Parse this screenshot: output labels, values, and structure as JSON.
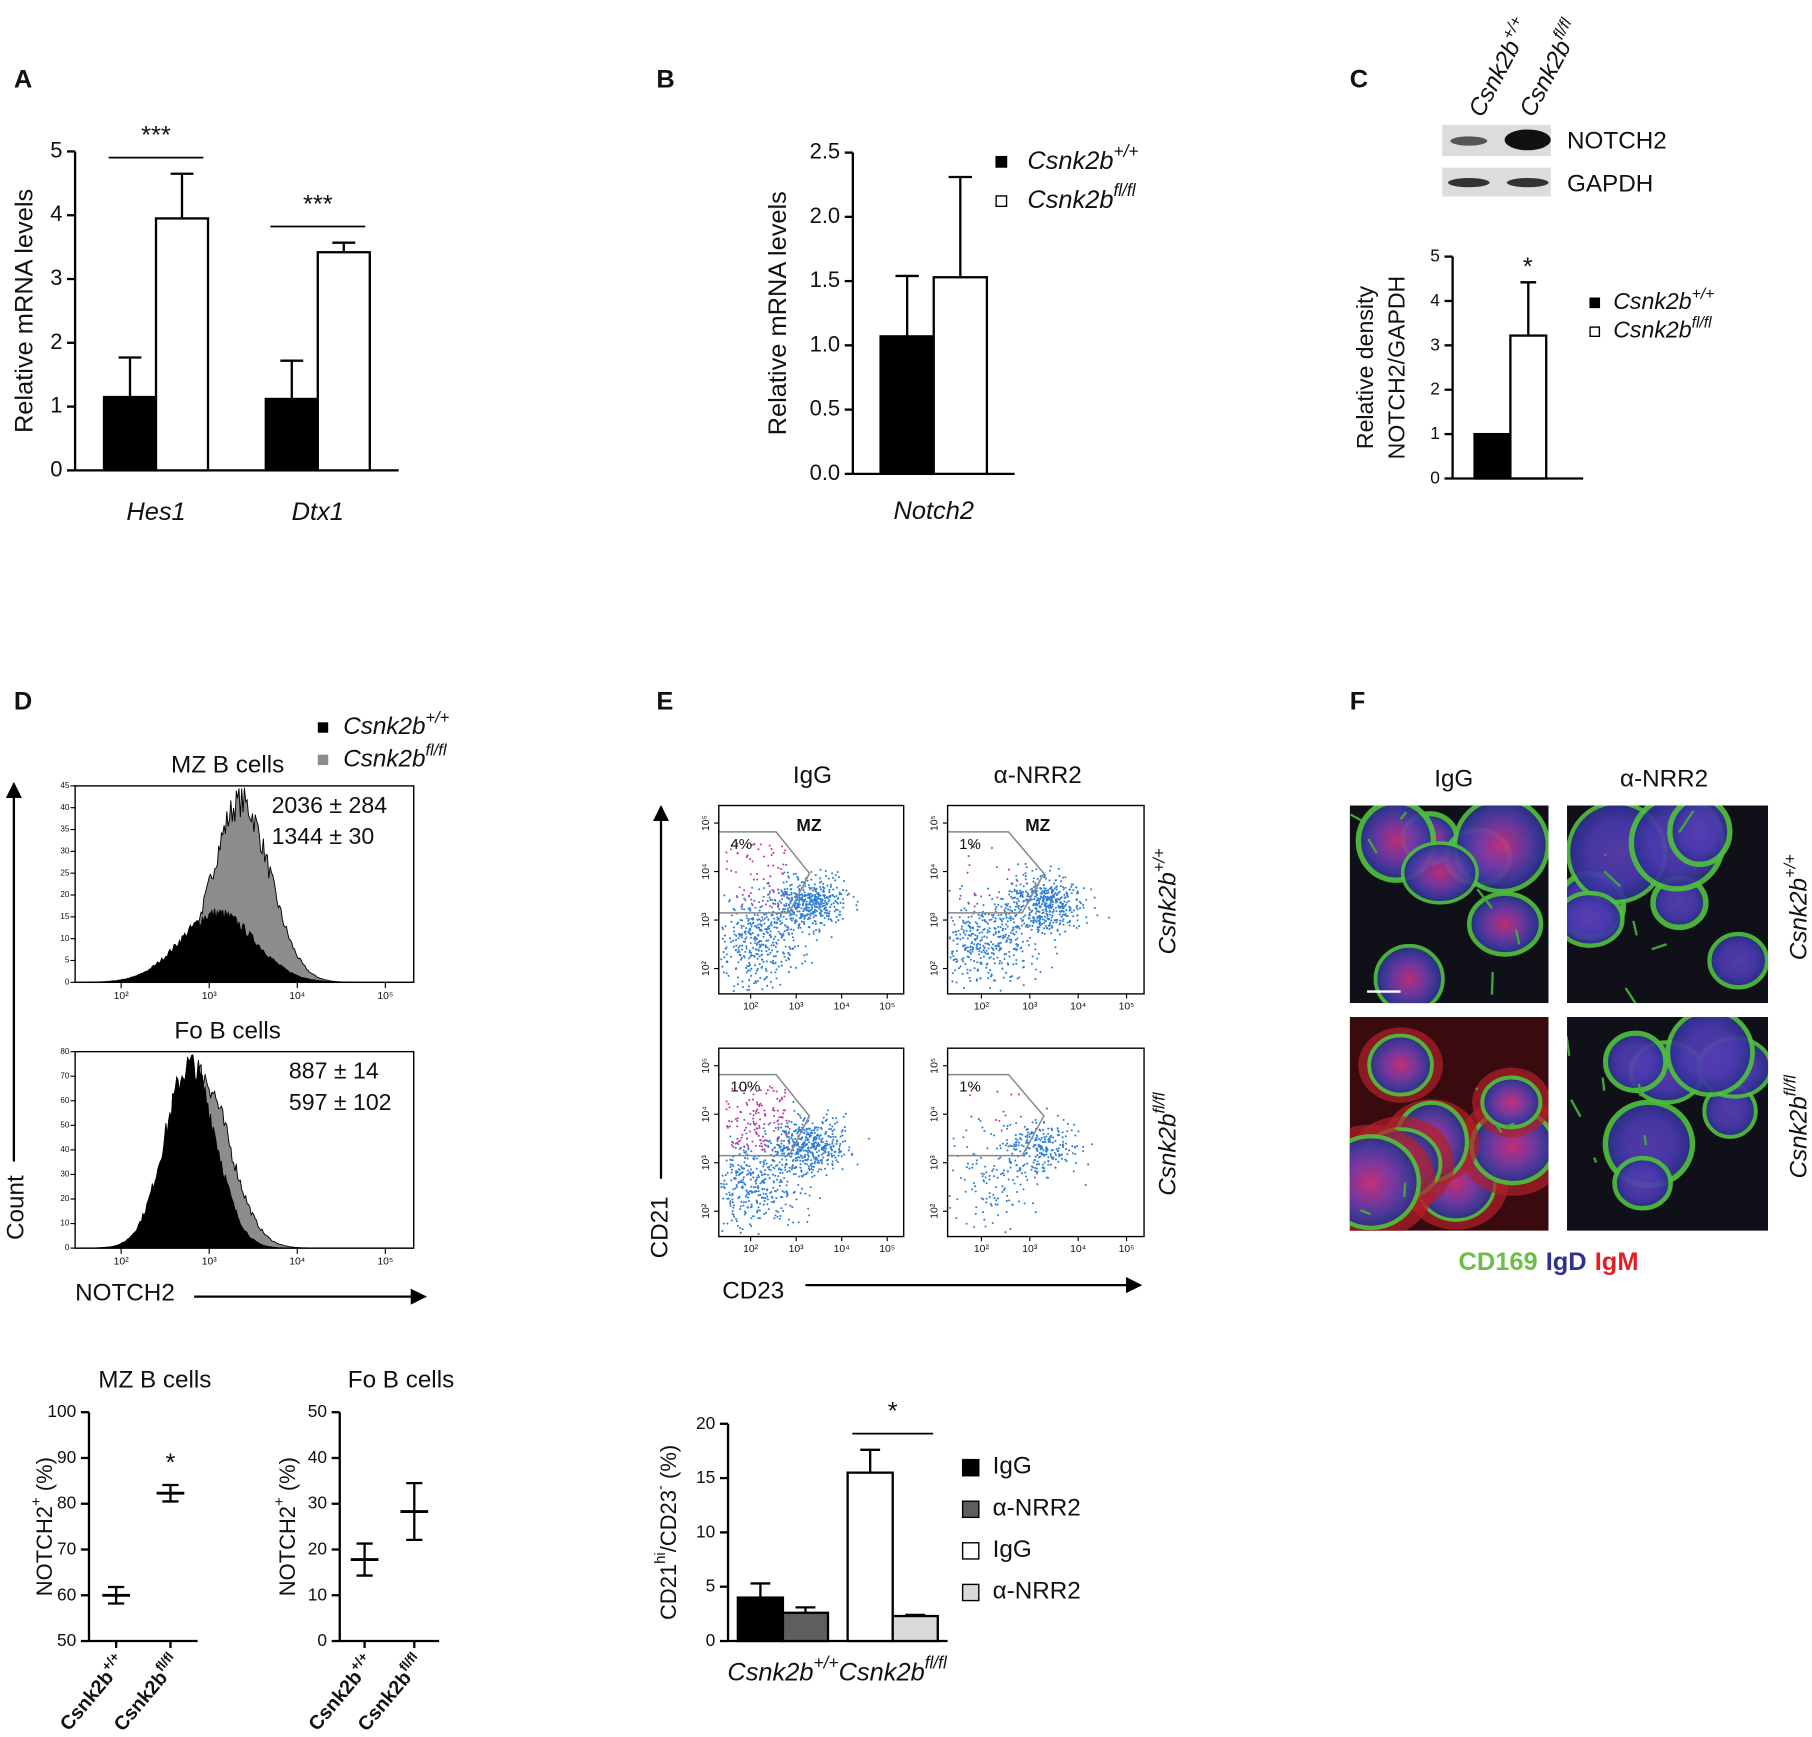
{
  "panel_labels": [
    "A",
    "B",
    "C",
    "D",
    "E",
    "F"
  ],
  "blot": {
    "lanes": [
      {
        "name": "Csnk2b",
        "name_sup": "+/+"
      },
      {
        "name": "Csnk2b",
        "name_sup": "fl/fl"
      }
    ],
    "bands": [
      "NOTCH2",
      "GAPDH"
    ]
  },
  "panel_d": {
    "legend": [
      {
        "name": "Csnk2b",
        "name_sup": "+/+",
        "color": "#000000"
      },
      {
        "name": "Csnk2b",
        "name_sup": "fl/fl",
        "color": "#8c8c8c"
      }
    ],
    "xlabel": "NOTCH2",
    "ylabel": "Count"
  },
  "panel_e": {
    "columns": [
      "IgG",
      "α-NRR2"
    ],
    "rows": [
      {
        "name": "Csnk2b",
        "name_sup": "+/+"
      },
      {
        "name": "Csnk2b",
        "name_sup": "fl/fl"
      }
    ],
    "xlabel": "CD23",
    "ylabel": "CD21"
  },
  "panel_f": {
    "columns": [
      "IgG",
      "α-NRR2"
    ],
    "rows": [
      {
        "name": "Csnk2b",
        "name_sup": "+/+"
      },
      {
        "name": "Csnk2b",
        "name_sup": "fl/fl"
      }
    ],
    "stains": [
      {
        "name": "CD169",
        "color": "#6cbf45"
      },
      {
        "name": "IgD",
        "color": "#2e3192"
      },
      {
        "name": "IgM",
        "color": "#e31e24"
      }
    ]
  },
  "chart_data": [
    {
      "type": "bar",
      "categories": [
        "Hes1",
        "Dtx1"
      ],
      "series": [
        {
          "color": "#000000",
          "values": [
            1.15,
            1.12
          ],
          "errors": [
            0.62,
            0.6
          ]
        },
        {
          "color": "#ffffff",
          "values": [
            3.95,
            3.42
          ],
          "errors": [
            0.7,
            0.15
          ]
        }
      ],
      "ylabel": "Relative mRNA levels",
      "ylim": [
        0,
        5
      ],
      "yticks": [
        0,
        1,
        2,
        3,
        4,
        5
      ],
      "annotations": [
        "***",
        "***"
      ],
      "bracket": true
    },
    {
      "type": "bar",
      "categories": [
        "Notch2"
      ],
      "series": [
        {
          "name": "Csnk2b",
          "name_sup": "+/+",
          "color": "#000000",
          "values": [
            1.07
          ],
          "errors": [
            0.47
          ]
        },
        {
          "name": "Csnk2b",
          "name_sup": "fl/fl",
          "color": "#ffffff",
          "values": [
            1.53
          ],
          "errors": [
            0.78
          ]
        }
      ],
      "ylabel": "Relative mRNA levels",
      "ylim": [
        0,
        2.5
      ],
      "yticks": [
        {
          "value": 0,
          "label": "0.0"
        },
        {
          "value": 0.5,
          "label": "0.5"
        },
        {
          "value": 1,
          "label": "1.0"
        },
        {
          "value": 1.5,
          "label": "1.5"
        },
        {
          "value": 2,
          "label": "2.0"
        },
        {
          "value": 2.5,
          "label": "2.5"
        }
      ],
      "legend": "right"
    },
    {
      "type": "bar",
      "categories": [
        null
      ],
      "series": [
        {
          "name": "Csnk2b",
          "name_sup": "+/+",
          "color": "#000000",
          "values": [
            1
          ]
        },
        {
          "name": "Csnk2b",
          "name_sup": "fl/fl",
          "color": "#ffffff",
          "values": [
            3.22
          ],
          "errors": [
            1.2
          ]
        }
      ],
      "ylabel": [
        "Relative density",
        "NOTCH2/GAPDH"
      ],
      "ylim": [
        0,
        5
      ],
      "yticks": [
        0,
        1,
        2,
        3,
        4,
        5
      ],
      "annotations": [
        "*"
      ],
      "legend": "right"
    },
    {
      "type": "flow-histogram",
      "title": "MZ B cells",
      "xscale": "log",
      "xlim": [
        30,
        210000
      ],
      "xticks": [
        {
          "value": 100,
          "label": "10²"
        },
        {
          "value": 1000,
          "label": "10³"
        },
        {
          "value": 10000,
          "label": "10⁴"
        },
        {
          "value": 100000,
          "label": "10⁵"
        }
      ],
      "ylim": [
        0,
        45
      ],
      "yticks": [
        0,
        5,
        10,
        15,
        20,
        25,
        30,
        35,
        40,
        45
      ],
      "annotations": [
        "2036 ± 284",
        "1344 ± 30"
      ]
    },
    {
      "type": "flow-histogram",
      "title": "Fo B cells",
      "xscale": "log",
      "xlim": [
        30,
        210000
      ],
      "xticks": [
        {
          "value": 100,
          "label": "10²"
        },
        {
          "value": 1000,
          "label": "10³"
        },
        {
          "value": 10000,
          "label": "10⁴"
        },
        {
          "value": 100000,
          "label": "10⁵"
        }
      ],
      "ylim": [
        0,
        80
      ],
      "yticks": [
        0,
        10,
        20,
        30,
        40,
        50,
        60,
        70,
        80
      ],
      "annotations": [
        "887 ± 14",
        "597 ± 102"
      ]
    },
    {
      "type": "errorbar",
      "title": "MZ B cells",
      "categories": [
        "Csnk2b",
        "Csnk2b"
      ],
      "category_sups": [
        "+/+",
        "fl/fl"
      ],
      "values": [
        60,
        82.3
      ],
      "errors": [
        1.8,
        1.8
      ],
      "ylabel": [
        {
          "text": "NOTCH2"
        },
        {
          "sup": "+"
        },
        {
          "text": " (%)"
        }
      ],
      "ylim": [
        50,
        100
      ],
      "yticks": [
        50,
        60,
        70,
        80,
        90,
        100
      ],
      "annotations": [
        "*"
      ]
    },
    {
      "type": "errorbar",
      "title": "Fo B cells",
      "categories": [
        "Csnk2b",
        "Csnk2b"
      ],
      "category_sups": [
        "+/+",
        "fl/fl"
      ],
      "values": [
        17.8,
        28.3
      ],
      "errors": [
        3.5,
        6.2
      ],
      "ylabel": [
        {
          "text": "NOTCH2"
        },
        {
          "sup": "+"
        },
        {
          "text": " (%)"
        }
      ],
      "ylim": [
        0,
        50
      ],
      "yticks": [
        0,
        10,
        20,
        30,
        40,
        50
      ]
    },
    {
      "type": "bar",
      "categories": [
        "Csnk2b",
        "Csnk2b"
      ],
      "category_sups": [
        "+/+",
        "fl/fl"
      ],
      "series": [
        {
          "name": "IgG",
          "color": "#000000",
          "values": [
            4.0,
            null
          ],
          "errors": [
            1.3,
            null
          ]
        },
        {
          "name": "α-NRR2",
          "color": "#5e5e5e",
          "values": [
            2.6,
            null
          ],
          "errors": [
            0.5,
            null
          ]
        },
        {
          "name": "IgG",
          "color": "#ffffff",
          "values": [
            null,
            15.5
          ],
          "errors": [
            null,
            2.1
          ]
        },
        {
          "name": "α-NRR2",
          "color": "#d9d9d9",
          "values": [
            null,
            2.3
          ],
          "errors": [
            null,
            0.1
          ]
        }
      ],
      "ylabel": [
        {
          "text": "CD21"
        },
        {
          "sup": "hi"
        },
        {
          "text": "/CD23"
        },
        {
          "sup": "-"
        },
        {
          "text": " (%)"
        }
      ],
      "ylim": [
        0,
        20
      ],
      "yticks": [
        0,
        5,
        10,
        15,
        20
      ],
      "annotations": [
        "*"
      ],
      "bracket": true,
      "legend": "right"
    },
    {
      "type": "flow-dot",
      "gate_label": "MZ",
      "gate_percent": "4%",
      "xscale": "log",
      "yscale": "log",
      "xlim": [
        20,
        230000
      ],
      "ylim": [
        30,
        230000
      ],
      "xticks": [
        {
          "value": 100,
          "label": "10²"
        },
        {
          "value": 1000,
          "label": "10³"
        },
        {
          "value": 10000,
          "label": "10⁴"
        },
        {
          "value": 100000,
          "label": "10⁵"
        }
      ],
      "yticks": [
        {
          "value": 100,
          "label": "10²"
        },
        {
          "value": 1000,
          "label": "10³"
        },
        {
          "value": 10000,
          "label": "10⁴"
        },
        {
          "value": 100000,
          "label": "10⁵"
        }
      ]
    },
    {
      "type": "flow-dot",
      "gate_label": "MZ",
      "gate_percent": "1%",
      "xscale": "log",
      "yscale": "log",
      "xlim": [
        20,
        230000
      ],
      "ylim": [
        30,
        230000
      ],
      "xticks": [
        {
          "value": 100,
          "label": "10²"
        },
        {
          "value": 1000,
          "label": "10³"
        },
        {
          "value": 10000,
          "label": "10⁴"
        },
        {
          "value": 100000,
          "label": "10⁵"
        }
      ],
      "yticks": [
        {
          "value": 100,
          "label": "10²"
        },
        {
          "value": 1000,
          "label": "10³"
        },
        {
          "value": 10000,
          "label": "10⁴"
        },
        {
          "value": 100000,
          "label": "10⁵"
        }
      ]
    },
    {
      "type": "flow-dot",
      "gate_percent": "10%",
      "xscale": "log",
      "yscale": "log",
      "xlim": [
        20,
        230000
      ],
      "ylim": [
        30,
        230000
      ],
      "xticks": [
        {
          "value": 100,
          "label": "10²"
        },
        {
          "value": 1000,
          "label": "10³"
        },
        {
          "value": 10000,
          "label": "10⁴"
        },
        {
          "value": 100000,
          "label": "10⁵"
        }
      ],
      "yticks": [
        {
          "value": 100,
          "label": "10²"
        },
        {
          "value": 1000,
          "label": "10³"
        },
        {
          "value": 10000,
          "label": "10⁴"
        },
        {
          "value": 100000,
          "label": "10⁵"
        }
      ]
    },
    {
      "type": "flow-dot",
      "gate_percent": "1%",
      "xscale": "log",
      "yscale": "log",
      "xlim": [
        20,
        230000
      ],
      "ylim": [
        30,
        230000
      ],
      "xticks": [
        {
          "value": 100,
          "label": "10²"
        },
        {
          "value": 1000,
          "label": "10³"
        },
        {
          "value": 10000,
          "label": "10⁴"
        },
        {
          "value": 100000,
          "label": "10⁵"
        }
      ],
      "yticks": [
        {
          "value": 100,
          "label": "10²"
        },
        {
          "value": 1000,
          "label": "10³"
        },
        {
          "value": 10000,
          "label": "10⁴"
        },
        {
          "value": 100000,
          "label": "10⁵"
        }
      ]
    }
  ]
}
